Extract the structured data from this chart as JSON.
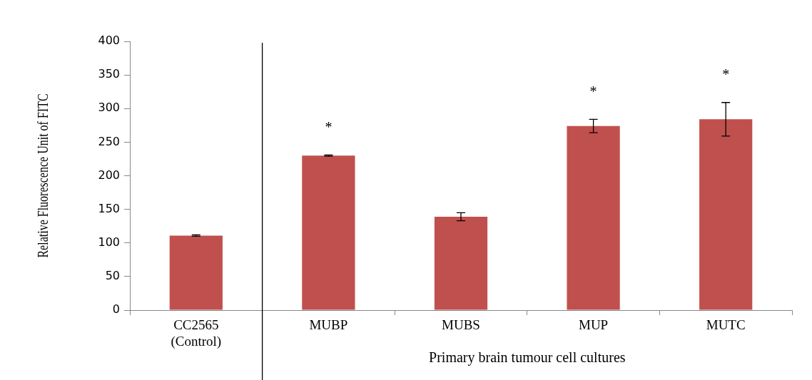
{
  "chart_data": {
    "type": "bar",
    "ylabel": "Relative Fluorescence Unit of FITC",
    "xlabel": "Primary brain tumour cell cultures",
    "categories": [
      "CC2565 (Control)",
      "MUBP",
      "MUBS",
      "MUP",
      "MUTC"
    ],
    "values": [
      111,
      230,
      139,
      274,
      284
    ],
    "errors": [
      1,
      1,
      6,
      10,
      25
    ],
    "color": "#c0504d",
    "ylim": [
      0,
      400
    ],
    "yticks": [
      0,
      50,
      100,
      150,
      200,
      250,
      300,
      350,
      400
    ],
    "grid": false,
    "legend": false,
    "value_labels": [
      null,
      "*",
      null,
      "*",
      "*"
    ]
  }
}
